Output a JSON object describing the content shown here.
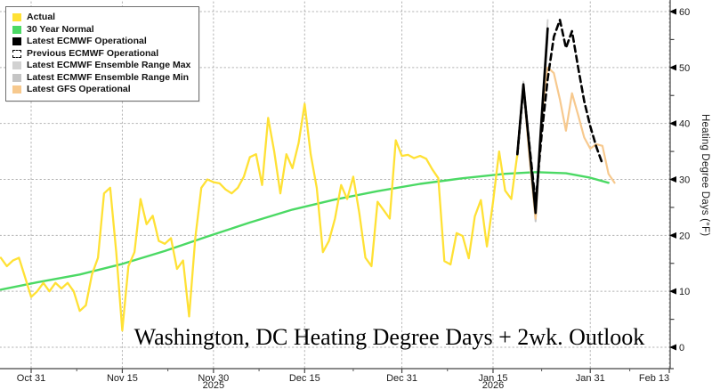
{
  "chart_data": {
    "type": "line",
    "title": "Washington, DC Heating Degree Days + 2wk. Outlook",
    "x_axis": {
      "unit": "date (daily)",
      "day0_date": "Oct 26, 2025",
      "major_ticks": [
        {
          "day": 5,
          "label": "Oct 31"
        },
        {
          "day": 20,
          "label": "Nov 15"
        },
        {
          "day": 35,
          "label": "Nov 30"
        },
        {
          "day": 50,
          "label": "Dec 15"
        },
        {
          "day": 66,
          "label": "Dec 31"
        },
        {
          "day": 81,
          "label": "Jan 15"
        },
        {
          "day": 97,
          "label": "Jan 31"
        },
        {
          "day": 110,
          "label": "Feb 13"
        }
      ],
      "year_labels": [
        {
          "day": 35,
          "label": "2025"
        },
        {
          "day": 81,
          "label": "2026"
        }
      ]
    },
    "y_axis": {
      "label": "Heating Degree Days (°F)",
      "side": "right",
      "min": 0,
      "max": 60,
      "major_step": 10,
      "minor_step": 5,
      "major_tick_labels": [
        "0",
        "10",
        "20",
        "30",
        "40",
        "50",
        "60"
      ]
    },
    "grid": {
      "show": true,
      "style": "dotted",
      "color": "#b3b3b3"
    },
    "legend_position": "top-left",
    "legend": [
      {
        "label": "Actual",
        "swatch": "#ffe135",
        "swatch_style": "solid"
      },
      {
        "label": "30 Year Normal",
        "swatch": "#4bd964",
        "swatch_style": "solid"
      },
      {
        "label": "Latest ECMWF Operational",
        "swatch": "#000000",
        "swatch_style": "solid"
      },
      {
        "label": "Previous ECMWF Operational",
        "swatch": "#ffffff",
        "swatch_style": "dashed-outline"
      },
      {
        "label": "Latest ECMWF Ensemble Range Max",
        "swatch": "#d2d2d2",
        "swatch_style": "solid"
      },
      {
        "label": "Latest ECMWF Ensemble Range Min",
        "swatch": "#c5c5c5",
        "swatch_style": "solid"
      },
      {
        "label": "Latest GFS Operational",
        "swatch": "#f7c98e",
        "swatch_style": "solid"
      }
    ],
    "series": [
      {
        "id": "ens_max",
        "name": "Latest ECMWF Ensemble Range Max",
        "color": "#d2d2d2",
        "style": "solid",
        "width": 2,
        "points": [
          [
            85,
            35
          ],
          [
            86,
            47.5
          ],
          [
            87,
            36.5
          ],
          [
            88,
            25
          ],
          [
            89,
            42.5
          ],
          [
            90,
            58.5
          ]
        ]
      },
      {
        "id": "ens_min",
        "name": "Latest ECMWF Ensemble Range Min",
        "color": "#c5c5c5",
        "style": "solid",
        "width": 2,
        "points": [
          [
            85,
            34
          ],
          [
            86,
            46
          ],
          [
            87,
            34
          ],
          [
            88,
            22.5
          ],
          [
            89,
            39.5
          ],
          [
            90,
            55.5
          ]
        ]
      },
      {
        "id": "normal",
        "name": "30 Year Normal",
        "color": "#4bd964",
        "style": "solid",
        "width": 2.4,
        "points": [
          [
            0,
            10.3
          ],
          [
            6,
            11.6
          ],
          [
            13,
            13
          ],
          [
            20,
            14.9
          ],
          [
            27,
            17.2
          ],
          [
            34,
            19.8
          ],
          [
            41,
            22.3
          ],
          [
            48,
            24.6
          ],
          [
            55,
            26.4
          ],
          [
            62,
            27.9
          ],
          [
            69,
            29.2
          ],
          [
            76,
            30.2
          ],
          [
            83,
            31
          ],
          [
            88,
            31.3
          ],
          [
            93,
            31.1
          ],
          [
            97,
            30.3
          ],
          [
            100,
            29.4
          ]
        ]
      },
      {
        "id": "actual",
        "name": "Actual",
        "color": "#ffe135",
        "style": "solid",
        "width": 2.3,
        "start_day": 0,
        "values": [
          16,
          14.5,
          15.5,
          16,
          12.5,
          9,
          10,
          11.5,
          10,
          11.5,
          10.5,
          11.5,
          10,
          6.5,
          7.5,
          13,
          16,
          27.5,
          28.5,
          17,
          3,
          14.5,
          17,
          26.5,
          22,
          23.5,
          19,
          18.5,
          19.5,
          14,
          15.5,
          5.5,
          19.5,
          28.5,
          30,
          29.5,
          29.3,
          28.2,
          27.5,
          28.5,
          30.5,
          34,
          34.5,
          29,
          41,
          35,
          27.5,
          34.5,
          32,
          36.5,
          43.5,
          34.5,
          28.5,
          17,
          19,
          23,
          29,
          26.5,
          30.5,
          24,
          16,
          14.5,
          26,
          24.5,
          23,
          37,
          34.2,
          34.4,
          33.8,
          34.2,
          33.7,
          31.8,
          30.2,
          15.4,
          14.8,
          20.4,
          19.9,
          15.9,
          23.4,
          26.3,
          18,
          26,
          35,
          28,
          26.5,
          34.5
        ]
      },
      {
        "id": "gfs",
        "name": "Latest GFS Operational",
        "color": "#f7c98e",
        "style": "solid",
        "width": 2.2,
        "points": [
          [
            85,
            34.5
          ],
          [
            86,
            47
          ],
          [
            87,
            34
          ],
          [
            88,
            23
          ],
          [
            89,
            41
          ],
          [
            90,
            50
          ],
          [
            91,
            49
          ],
          [
            92,
            44.3
          ],
          [
            93,
            38.7
          ],
          [
            94,
            45.4
          ],
          [
            95,
            41.5
          ],
          [
            96,
            37.5
          ],
          [
            97,
            35.5
          ],
          [
            98,
            36.3
          ],
          [
            99,
            36
          ],
          [
            100,
            31
          ],
          [
            101,
            29.4
          ]
        ]
      },
      {
        "id": "ecmwf_op",
        "name": "Latest ECMWF Operational",
        "color": "#000000",
        "style": "solid",
        "width": 2.6,
        "points": [
          [
            85,
            34.5
          ],
          [
            86,
            47
          ],
          [
            87,
            35.5
          ],
          [
            88,
            24
          ],
          [
            89,
            41
          ],
          [
            90,
            57
          ]
        ]
      },
      {
        "id": "ecmwf_prev",
        "name": "Previous ECMWF Operational",
        "color": "#000000",
        "style": "dashed",
        "width": 2.6,
        "points": [
          [
            85,
            34.5
          ],
          [
            86,
            46.5
          ],
          [
            87,
            36
          ],
          [
            88,
            25.8
          ],
          [
            89,
            38
          ],
          [
            90,
            48
          ],
          [
            91,
            55.5
          ],
          [
            92,
            58.5
          ],
          [
            93,
            53.5
          ],
          [
            94,
            56.5
          ],
          [
            95,
            50
          ],
          [
            96,
            44
          ],
          [
            97,
            39.5
          ],
          [
            98,
            35.8
          ],
          [
            99,
            32.8
          ]
        ]
      }
    ]
  }
}
